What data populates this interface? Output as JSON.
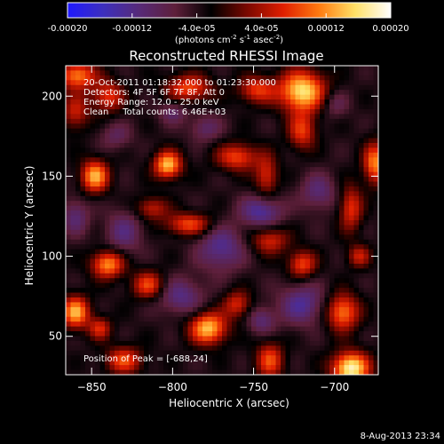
{
  "colorbar": {
    "ticks": [
      -0.0002,
      -0.00012,
      -4e-05,
      4e-05,
      0.00012,
      0.0002
    ],
    "tick_labels": [
      "-0.00020",
      "-0.00012",
      "-4.0e-05",
      "4.0e-05",
      "0.00012",
      "0.00020"
    ],
    "range": [
      -0.0002,
      0.0002
    ],
    "unit_label": "(photons cm",
    "unit_exp1": "-2",
    "unit_mid": " s",
    "unit_exp2": "-1",
    "unit_mid2": " asec",
    "unit_exp3": "-2",
    "unit_close": ")",
    "stops": [
      "#1f19ff",
      "#3d2fbd",
      "#572a78",
      "#5e1f3a",
      "#000000",
      "#7a0800",
      "#e01e00",
      "#ff7a10",
      "#ffe066",
      "#ffffff"
    ]
  },
  "info": {
    "time_range": "20-Oct-2011 01:18:32.000 to 01:23:30.000",
    "detectors": "Detectors: 4F 5F 6F 7F 8F, Att 0",
    "energy": "Energy Range: 12.0 - 25.0 keV",
    "clean": "Clean     Total counts: 6.46E+03",
    "peak": "Position of Peak = [-688,24]"
  },
  "footer": {
    "date": "8-Aug-2013 23:34"
  },
  "chart_data": {
    "type": "heatmap",
    "title": "Reconstructed RHESSI Image",
    "xlabel": "Heliocentric X (arcsec)",
    "ylabel": "Heliocentric Y (arcsec)",
    "xlim": [
      -866,
      -673
    ],
    "ylim": [
      26,
      219
    ],
    "xticks": [
      -850,
      -800,
      -750,
      -700
    ],
    "yticks": [
      50,
      100,
      150,
      200
    ],
    "value_range": [
      -0.0002,
      0.0002
    ],
    "peak": [
      -688,
      24
    ],
    "blobs": [
      {
        "x": -720,
        "y": 203,
        "sx": 10,
        "sy": 9,
        "v": 1.0
      },
      {
        "x": -748,
        "y": 204,
        "sx": 8,
        "sy": 6,
        "v": 0.55
      },
      {
        "x": -790,
        "y": 205,
        "sx": 10,
        "sy": 6,
        "v": 0.6
      },
      {
        "x": -859,
        "y": 213,
        "sx": 8,
        "sy": 6,
        "v": 0.75
      },
      {
        "x": -840,
        "y": 200,
        "sx": 7,
        "sy": 7,
        "v": 0.55
      },
      {
        "x": -860,
        "y": 190,
        "sx": 6,
        "sy": 8,
        "v": 0.45
      },
      {
        "x": -848,
        "y": 150,
        "sx": 6,
        "sy": 7,
        "v": 0.85
      },
      {
        "x": -803,
        "y": 157,
        "sx": 6,
        "sy": 6,
        "v": 0.9
      },
      {
        "x": -813,
        "y": 130,
        "sx": 7,
        "sy": 5,
        "v": 0.45
      },
      {
        "x": -790,
        "y": 120,
        "sx": 10,
        "sy": 5,
        "v": 0.6
      },
      {
        "x": -760,
        "y": 162,
        "sx": 9,
        "sy": 6,
        "v": 0.6
      },
      {
        "x": -742,
        "y": 150,
        "sx": 5,
        "sy": 9,
        "v": 0.5
      },
      {
        "x": -720,
        "y": 178,
        "sx": 6,
        "sy": 8,
        "v": 0.55
      },
      {
        "x": -675,
        "y": 158,
        "sx": 5,
        "sy": 9,
        "v": 0.75
      },
      {
        "x": -690,
        "y": 130,
        "sx": 5,
        "sy": 10,
        "v": 0.55
      },
      {
        "x": -740,
        "y": 110,
        "sx": 8,
        "sy": 6,
        "v": 0.5
      },
      {
        "x": -720,
        "y": 95,
        "sx": 6,
        "sy": 6,
        "v": 0.6
      },
      {
        "x": -685,
        "y": 100,
        "sx": 5,
        "sy": 5,
        "v": 0.45
      },
      {
        "x": -840,
        "y": 95,
        "sx": 7,
        "sy": 6,
        "v": 0.8
      },
      {
        "x": -815,
        "y": 82,
        "sx": 7,
        "sy": 6,
        "v": 0.6
      },
      {
        "x": -860,
        "y": 65,
        "sx": 6,
        "sy": 7,
        "v": 0.85
      },
      {
        "x": -845,
        "y": 55,
        "sx": 5,
        "sy": 5,
        "v": 0.5
      },
      {
        "x": -778,
        "y": 55,
        "sx": 8,
        "sy": 7,
        "v": 0.9
      },
      {
        "x": -760,
        "y": 70,
        "sx": 6,
        "sy": 6,
        "v": 0.5
      },
      {
        "x": -740,
        "y": 35,
        "sx": 6,
        "sy": 8,
        "v": 0.6
      },
      {
        "x": -695,
        "y": 65,
        "sx": 7,
        "sy": 8,
        "v": 0.75
      },
      {
        "x": -690,
        "y": 30,
        "sx": 8,
        "sy": 7,
        "v": 1.1
      },
      {
        "x": -830,
        "y": 35,
        "sx": 8,
        "sy": 6,
        "v": 0.6
      },
      {
        "x": -800,
        "y": 190,
        "sx": 6,
        "sy": 5,
        "v": -0.3
      },
      {
        "x": -830,
        "y": 115,
        "sx": 8,
        "sy": 10,
        "v": -0.35
      },
      {
        "x": -770,
        "y": 105,
        "sx": 10,
        "sy": 10,
        "v": -0.45
      },
      {
        "x": -745,
        "y": 128,
        "sx": 9,
        "sy": 7,
        "v": -0.5
      },
      {
        "x": -795,
        "y": 75,
        "sx": 10,
        "sy": 8,
        "v": -0.4
      },
      {
        "x": -720,
        "y": 70,
        "sx": 10,
        "sy": 9,
        "v": -0.45
      },
      {
        "x": -745,
        "y": 60,
        "sx": 6,
        "sy": 6,
        "v": -0.35
      },
      {
        "x": -860,
        "y": 125,
        "sx": 6,
        "sy": 8,
        "v": -0.35
      },
      {
        "x": -710,
        "y": 140,
        "sx": 8,
        "sy": 8,
        "v": -0.35
      },
      {
        "x": -780,
        "y": 180,
        "sx": 7,
        "sy": 6,
        "v": -0.3
      },
      {
        "x": -835,
        "y": 175,
        "sx": 7,
        "sy": 6,
        "v": -0.25
      },
      {
        "x": -700,
        "y": 195,
        "sx": 6,
        "sy": 6,
        "v": -0.25
      }
    ]
  }
}
